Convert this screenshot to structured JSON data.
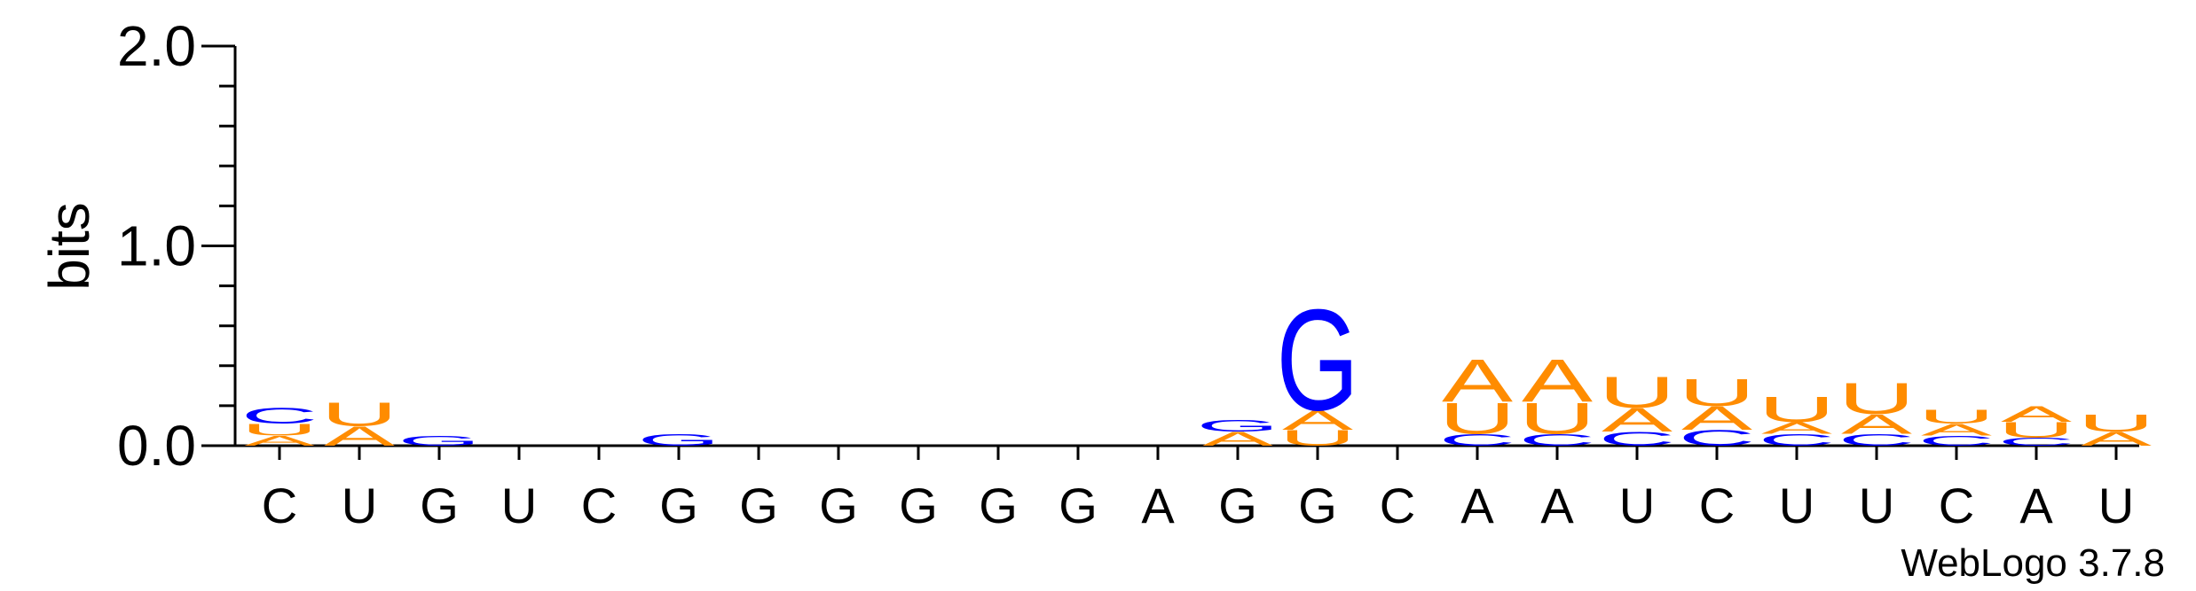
{
  "chart_data": {
    "type": "sequence-logo",
    "ylabel": "bits",
    "ylim": [
      0,
      2
    ],
    "yticks": [
      "0.0",
      "1.0",
      "2.0"
    ],
    "positions": [
      "C",
      "U",
      "G",
      "U",
      "C",
      "G",
      "G",
      "G",
      "G",
      "G",
      "G",
      "A",
      "G",
      "G",
      "C",
      "A",
      "A",
      "U",
      "C",
      "U",
      "U",
      "C",
      "A",
      "U"
    ],
    "colors": {
      "A": "#ff8c00",
      "U": "#ff8c00",
      "G": "#0000ff",
      "C": "#0000ff"
    },
    "stacks": [
      [
        [
          "A",
          0.05
        ],
        [
          "U",
          0.06
        ],
        [
          "C",
          0.08
        ]
      ],
      [
        [
          "A",
          0.1
        ],
        [
          "U",
          0.12
        ]
      ],
      [
        [
          "G",
          0.05
        ]
      ],
      [],
      [],
      [
        [
          "G",
          0.06
        ]
      ],
      [],
      [],
      [],
      [],
      [],
      [],
      [
        [
          "A",
          0.07
        ],
        [
          "G",
          0.06
        ]
      ],
      [
        [
          "U",
          0.08
        ],
        [
          "A",
          0.1
        ],
        [
          "G",
          0.52
        ]
      ],
      [],
      [
        [
          "C",
          0.06
        ],
        [
          "U",
          0.16
        ],
        [
          "A",
          0.22
        ]
      ],
      [
        [
          "C",
          0.06
        ],
        [
          "U",
          0.16
        ],
        [
          "A",
          0.22
        ]
      ],
      [
        [
          "C",
          0.07
        ],
        [
          "A",
          0.12
        ],
        [
          "U",
          0.16
        ]
      ],
      [
        [
          "C",
          0.08
        ],
        [
          "A",
          0.12
        ],
        [
          "U",
          0.14
        ]
      ],
      [
        [
          "C",
          0.06
        ],
        [
          "A",
          0.06
        ],
        [
          "U",
          0.13
        ]
      ],
      [
        [
          "C",
          0.06
        ],
        [
          "A",
          0.1
        ],
        [
          "U",
          0.16
        ]
      ],
      [
        [
          "C",
          0.05
        ],
        [
          "A",
          0.06
        ],
        [
          "U",
          0.07
        ]
      ],
      [
        [
          "C",
          0.04
        ],
        [
          "U",
          0.08
        ],
        [
          "A",
          0.08
        ]
      ],
      [
        [
          "A",
          0.07
        ],
        [
          "U",
          0.09
        ]
      ]
    ]
  },
  "credit": "WebLogo 3.7.8"
}
